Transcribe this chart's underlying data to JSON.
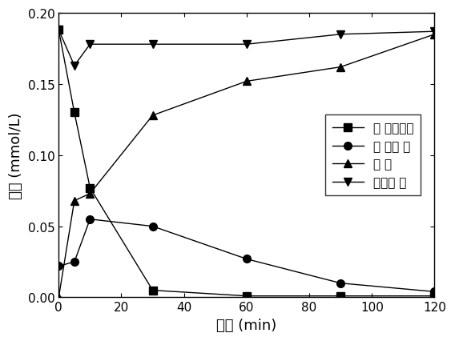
{
  "xlabel": "时间 (min)",
  "ylabel": "浓度 (mmol/L)",
  "xlim": [
    0,
    120
  ],
  "ylim": [
    0,
    0.2
  ],
  "yticks": [
    0.0,
    0.05,
    0.1,
    0.15,
    0.2
  ],
  "xticks": [
    0,
    20,
    40,
    60,
    80,
    100,
    120
  ],
  "series": [
    {
      "label": "氯 代硝基苯",
      "x": [
        0,
        5,
        10,
        30,
        60,
        90,
        120
      ],
      "y": [
        0.188,
        0.13,
        0.077,
        0.005,
        0.001,
        0.001,
        0.001
      ],
      "marker": "s",
      "markersize": 7
    },
    {
      "label": "氯 代苯 胺",
      "x": [
        0,
        5,
        10,
        30,
        60,
        90,
        120
      ],
      "y": [
        0.022,
        0.025,
        0.055,
        0.05,
        0.027,
        0.01,
        0.004
      ],
      "marker": "o",
      "markersize": 7
    },
    {
      "label": "苯 胺",
      "x": [
        0,
        5,
        10,
        30,
        60,
        90,
        120
      ],
      "y": [
        0.0,
        0.068,
        0.073,
        0.128,
        0.152,
        0.162,
        0.185
      ],
      "marker": "^",
      "markersize": 7
    },
    {
      "label": "物料平 衡",
      "x": [
        0,
        5,
        10,
        30,
        60,
        90,
        120
      ],
      "y": [
        0.188,
        0.163,
        0.178,
        0.178,
        0.178,
        0.185,
        0.187
      ],
      "marker": "v",
      "markersize": 7
    }
  ],
  "fontsize_label": 13,
  "fontsize_tick": 11,
  "fontsize_legend": 11
}
